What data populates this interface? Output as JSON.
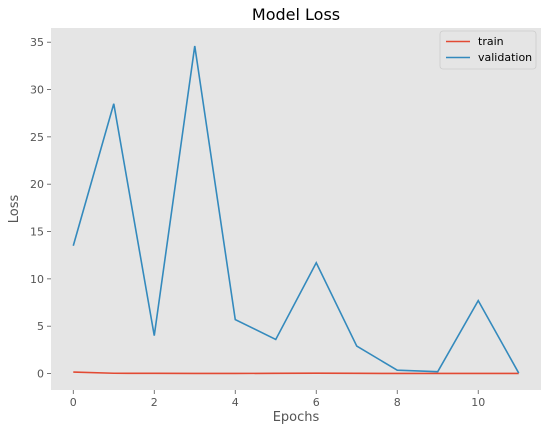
{
  "chart_data": {
    "type": "line",
    "title": "Model Loss",
    "xlabel": "Epochs",
    "ylabel": "Loss",
    "x": [
      0,
      1,
      2,
      3,
      4,
      5,
      6,
      7,
      8,
      9,
      10,
      11
    ],
    "xlim": [
      -0.55,
      11.55
    ],
    "ylim": [
      -1.74,
      36.5
    ],
    "xticks": [
      0,
      2,
      4,
      6,
      8,
      10
    ],
    "yticks": [
      0,
      5,
      10,
      15,
      20,
      25,
      30,
      35
    ],
    "grid": false,
    "legend_position": "top-right",
    "series": [
      {
        "name": "train",
        "color": "#E24A33",
        "values": [
          0.15,
          0.03,
          0.02,
          0.01,
          0.01,
          0.02,
          0.04,
          0.02,
          0.01,
          0.01,
          0.01,
          0.01
        ]
      },
      {
        "name": "validation",
        "color": "#348ABD",
        "values": [
          13.5,
          28.5,
          4.0,
          34.6,
          5.7,
          3.6,
          11.7,
          2.9,
          0.35,
          0.2,
          7.7,
          0.05
        ]
      }
    ],
    "colors": {
      "plot_background": "#E5E5E5",
      "text": "#555555"
    }
  }
}
